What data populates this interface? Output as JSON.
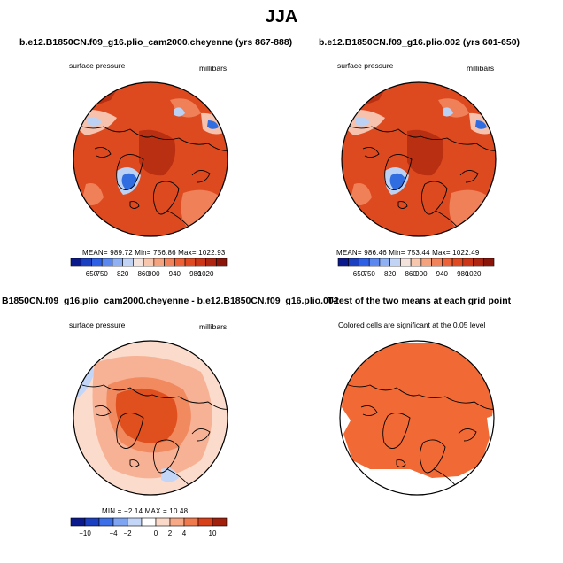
{
  "figure": {
    "title": "JJA"
  },
  "panels": [
    {
      "title": "b.e12.B1850CN.f09_g16.plio_cam2000.cheyenne (yrs 867-888)",
      "variable": "surface pressure",
      "units": "millibars",
      "stats": "MEAN= 989.72   Min= 756.86   Max= 1022.93",
      "colorbar": {
        "labels": [
          "650",
          "750",
          "820",
          "860",
          "900",
          "940",
          "980",
          "1020"
        ],
        "colors": [
          "#0a1a8c",
          "#1a3fc0",
          "#2e60e6",
          "#5a88ef",
          "#8fb0f3",
          "#c2d4f6",
          "#f3e3dc",
          "#f7c6ad",
          "#f5a27f",
          "#f2825a",
          "#ec6137",
          "#e04a22",
          "#cc3515",
          "#b02510",
          "#8a1508"
        ]
      },
      "map_colors": {
        "base": "#de4a1f",
        "dark": "#b92f12",
        "light": "#f08058",
        "pale": "#f6c2ad",
        "blue": "#2f6de0",
        "lightblue": "#bcd2f4"
      }
    },
    {
      "title": "b.e12.B1850CN.f09_g16.plio.002 (yrs 601-650)",
      "variable": "surface pressure",
      "units": "millibars",
      "stats": "MEAN= 986.46   Min= 753.44   Max= 1022.49",
      "colorbar": {
        "labels": [
          "650",
          "750",
          "820",
          "860",
          "900",
          "940",
          "980",
          "1020"
        ],
        "colors": [
          "#0a1a8c",
          "#1a3fc0",
          "#2e60e6",
          "#5a88ef",
          "#8fb0f3",
          "#c2d4f6",
          "#f3e3dc",
          "#f7c6ad",
          "#f5a27f",
          "#f2825a",
          "#ec6137",
          "#e04a22",
          "#cc3515",
          "#b02510",
          "#8a1508"
        ]
      },
      "map_colors": {
        "base": "#de4a1f",
        "dark": "#b92f12",
        "light": "#f08058",
        "pale": "#f6c2ad",
        "blue": "#2f6de0",
        "lightblue": "#bcd2f4"
      }
    },
    {
      "title": "B1850CN.f09_g16.plio_cam2000.cheyenne - b.e12.B1850CN.f09_g16.plio.002",
      "variable": "surface pressure",
      "units": "millibars",
      "stats": "MIN =  −2.14  MAX =  10.48",
      "colorbar": {
        "labels": [
          "−10",
          "−4",
          "−2",
          "0",
          "2",
          "4",
          "10"
        ],
        "colors": [
          "#0a1a8c",
          "#1a3fc0",
          "#3d6fe8",
          "#7fa5f2",
          "#c4d6f7",
          "#ffffff",
          "#fbd9c9",
          "#f7a986",
          "#ef7a4e",
          "#d8401a",
          "#a0200b"
        ]
      },
      "map_colors": {
        "base": "#f7b296",
        "mid": "#f28a60",
        "strong": "#e0501f",
        "pale": "#fbdccc",
        "blue": "#c4d6f7"
      }
    },
    {
      "title": "T-test of the two means at each grid point",
      "subtitle": "Colored cells are significant at the 0.05 level",
      "map_colors": {
        "fill": "#f16a35"
      }
    }
  ]
}
